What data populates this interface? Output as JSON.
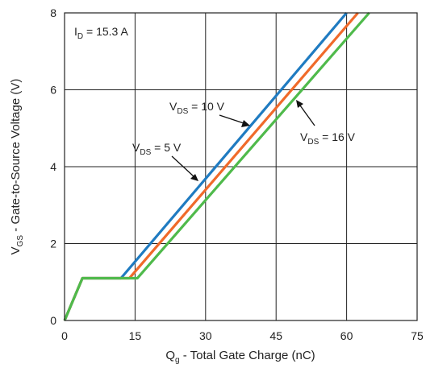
{
  "chart_data": {
    "type": "line",
    "xlabel": {
      "main": "Q",
      "sub": "g",
      "rest": " - Total Gate Charge (nC)"
    },
    "ylabel": {
      "main": "V",
      "sub": "GS",
      "rest": " - Gate-to-Source Voltage (V)"
    },
    "xlim": [
      0,
      75
    ],
    "ylim": [
      0,
      8
    ],
    "xticks": [
      0,
      15,
      30,
      45,
      60,
      75
    ],
    "yticks": [
      0,
      2,
      4,
      6,
      8
    ],
    "grid": true,
    "condition": {
      "main": "I",
      "sub": "D",
      "rest": " = 15.3 A"
    },
    "series": [
      {
        "name": "VDS = 5 V",
        "label_main": "V",
        "label_sub": "DS",
        "label_rest": " = 5 V",
        "color": "#1f7bc1",
        "points": [
          [
            0,
            0
          ],
          [
            3.8,
            1.1
          ],
          [
            12,
            1.1
          ],
          [
            60,
            8.0
          ]
        ]
      },
      {
        "name": "VDS = 10 V",
        "label_main": "V",
        "label_sub": "DS",
        "label_rest": " = 10 V",
        "color": "#f06a2a",
        "points": [
          [
            0,
            0
          ],
          [
            3.8,
            1.1
          ],
          [
            13.8,
            1.1
          ],
          [
            62.4,
            8.0
          ]
        ]
      },
      {
        "name": "VDS = 16 V",
        "label_main": "V",
        "label_sub": "DS",
        "label_rest": " = 16 V",
        "color": "#4fba4b",
        "points": [
          [
            0,
            0
          ],
          [
            3.8,
            1.1
          ],
          [
            15.5,
            1.1
          ],
          [
            64.8,
            8.0
          ]
        ]
      }
    ]
  }
}
